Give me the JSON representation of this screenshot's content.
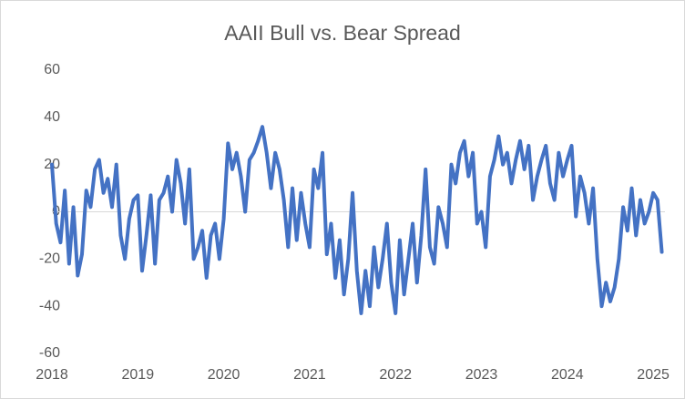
{
  "chart_data": {
    "type": "line",
    "title": "AAII Bull vs. Bear Spread",
    "x": [
      2018.0,
      2018.05,
      2018.1,
      2018.15,
      2018.2,
      2018.25,
      2018.3,
      2018.35,
      2018.4,
      2018.45,
      2018.5,
      2018.55,
      2018.6,
      2018.65,
      2018.7,
      2018.75,
      2018.8,
      2018.85,
      2018.9,
      2018.95,
      2019.0,
      2019.05,
      2019.1,
      2019.15,
      2019.2,
      2019.25,
      2019.3,
      2019.35,
      2019.4,
      2019.45,
      2019.5,
      2019.55,
      2019.6,
      2019.65,
      2019.7,
      2019.75,
      2019.8,
      2019.85,
      2019.9,
      2019.95,
      2020.0,
      2020.05,
      2020.1,
      2020.15,
      2020.2,
      2020.25,
      2020.3,
      2020.35,
      2020.4,
      2020.45,
      2020.5,
      2020.55,
      2020.6,
      2020.65,
      2020.7,
      2020.75,
      2020.8,
      2020.85,
      2020.9,
      2020.95,
      2021.0,
      2021.05,
      2021.1,
      2021.15,
      2021.2,
      2021.25,
      2021.3,
      2021.35,
      2021.4,
      2021.45,
      2021.5,
      2021.55,
      2021.6,
      2021.65,
      2021.7,
      2021.75,
      2021.8,
      2021.85,
      2021.9,
      2021.95,
      2022.0,
      2022.05,
      2022.1,
      2022.15,
      2022.2,
      2022.25,
      2022.3,
      2022.35,
      2022.4,
      2022.45,
      2022.5,
      2022.55,
      2022.6,
      2022.65,
      2022.7,
      2022.75,
      2022.8,
      2022.85,
      2022.9,
      2022.95,
      2023.0,
      2023.05,
      2023.1,
      2023.15,
      2023.2,
      2023.25,
      2023.3,
      2023.35,
      2023.4,
      2023.45,
      2023.5,
      2023.55,
      2023.6,
      2023.65,
      2023.7,
      2023.75,
      2023.8,
      2023.85,
      2023.9,
      2023.95,
      2024.0,
      2024.05,
      2024.1,
      2024.15,
      2024.2,
      2024.25,
      2024.3,
      2024.35,
      2024.4,
      2024.45,
      2024.5,
      2024.55,
      2024.6,
      2024.65,
      2024.7,
      2024.75,
      2024.8,
      2024.85,
      2024.9,
      2024.95,
      2025.0,
      2025.05,
      2025.1
    ],
    "values": [
      20,
      -5,
      -13,
      9,
      -22,
      2,
      -27,
      -18,
      9,
      2,
      18,
      22,
      8,
      14,
      2,
      20,
      -10,
      -20,
      -3,
      5,
      7,
      -25,
      -10,
      7,
      -22,
      5,
      8,
      15,
      0,
      22,
      12,
      -5,
      18,
      -20,
      -15,
      -8,
      -28,
      -10,
      -5,
      -20,
      -3,
      29,
      18,
      25,
      15,
      0,
      22,
      25,
      30,
      36,
      25,
      10,
      25,
      18,
      5,
      -15,
      10,
      -12,
      8,
      -5,
      -15,
      18,
      10,
      25,
      -18,
      -5,
      -28,
      -12,
      -35,
      -20,
      8,
      -25,
      -43,
      -25,
      -40,
      -15,
      -32,
      -20,
      -5,
      -30,
      -43,
      -12,
      -35,
      -20,
      -5,
      -30,
      -10,
      18,
      -15,
      -22,
      2,
      -5,
      -15,
      20,
      12,
      25,
      30,
      15,
      25,
      -5,
      0,
      -15,
      15,
      22,
      32,
      20,
      25,
      12,
      22,
      30,
      18,
      28,
      5,
      15,
      22,
      28,
      12,
      5,
      25,
      15,
      22,
      28,
      -2,
      15,
      8,
      -5,
      10,
      -20,
      -40,
      -30,
      -38,
      -32,
      -20,
      2,
      -8,
      10,
      -10,
      5,
      -5,
      0,
      8,
      5,
      -17
    ],
    "color": "#4472c4",
    "xlim": [
      2018,
      2025.12
    ],
    "xticks": [
      2018,
      2019,
      2020,
      2021,
      2022,
      2023,
      2024,
      2025
    ],
    "ylim": [
      -60,
      60
    ],
    "yticks": [
      -60,
      -40,
      -20,
      0,
      20,
      40,
      60
    ],
    "grid": false
  }
}
